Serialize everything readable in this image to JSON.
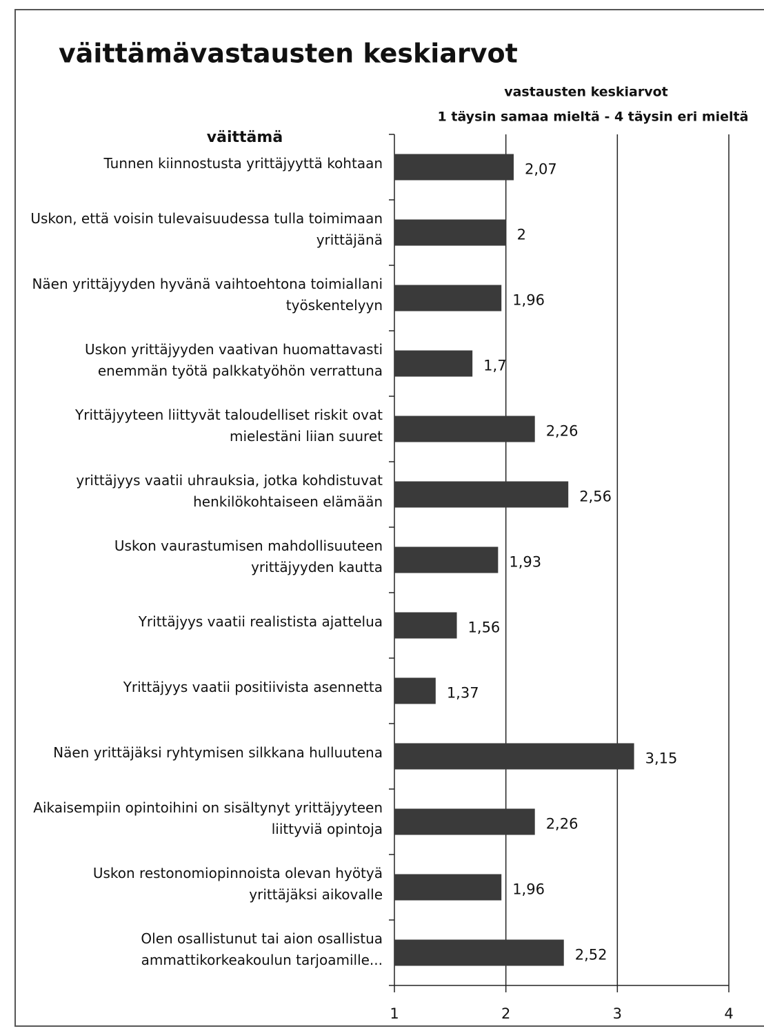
{
  "chart_data": {
    "type": "barh",
    "title": "väittämävastausten keskiarvot",
    "x_label": [
      "vastausten keskiarvot",
      "1 täysin samaa mieltä - 4 täysin eri mieltä"
    ],
    "y_label": "väittämä",
    "categories": [
      "Tunnen kiinnostusta yrittäjyyttä kohtaan",
      "Uskon, että voisin tulevaisuudessa tulla toimimaan yrittäjänä",
      "Näen yrittäjyyden hyvänä vaihtoehtona toimiallani työskentelyyn",
      "Uskon yrittäjyyden vaativan huomattavasti enemmän työtä palkkatyöhön verrattuna",
      "Yrittäjyyteen liittyvät taloudelliset riskit ovat mielestäni liian suuret",
      "yrittäjyys vaatii uhrauksia, jotka kohdistuvat henkilökohtaiseen elämään",
      "Uskon vaurastumisen mahdollisuuteen yrittäjyyden kautta",
      "Yrittäjyys vaatii realistista ajattelua",
      "Yrittäjyys vaatii positiivista asennetta",
      "Näen yrittäjäksi ryhtymisen silkkana hulluutena",
      "Aikaisempiin opintoihini on sisältynyt yrittäjyyteen liittyviä opintoja",
      "Uskon restonomiopinnoista olevan hyötyä yrittäjäksi aikovalle",
      "Olen osallistunut tai aion osallistua ammattikorkeakoulun tarjoamille..."
    ],
    "values": [
      2.07,
      2,
      1.96,
      1.7,
      2.26,
      2.56,
      1.93,
      1.56,
      1.37,
      3.15,
      2.26,
      1.96,
      2.52
    ],
    "value_labels": [
      "2,07",
      "2",
      "1,96",
      "1,7",
      "2,26",
      "2,56",
      "1,93",
      "1,56",
      "1,37",
      "3,15",
      "2,26",
      "1,96",
      "2,52"
    ],
    "color": "#3a3a3a",
    "xlim": [
      1,
      4
    ],
    "xticks": [
      1,
      2,
      3,
      4
    ],
    "grid": true
  }
}
